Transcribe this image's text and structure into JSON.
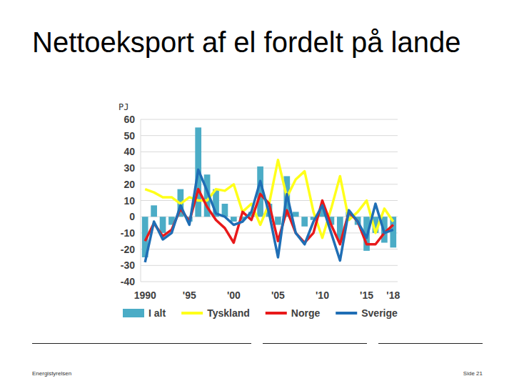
{
  "chart_data": {
    "type": "bar",
    "title": "Nettoeksport af el fordelt på lande",
    "ylabel": "PJ",
    "categories": [
      "1990",
      null,
      null,
      null,
      null,
      "'95",
      null,
      null,
      null,
      null,
      "'00",
      null,
      null,
      null,
      null,
      "'05",
      null,
      null,
      null,
      null,
      "'10",
      null,
      null,
      null,
      null,
      "'15",
      null,
      null,
      "'18"
    ],
    "series": [
      {
        "name": "I alt",
        "type": "bar",
        "color": "#4bacc6",
        "values": [
          -25,
          7,
          -10,
          -5,
          17,
          -3,
          55,
          26,
          17,
          8,
          -3,
          -2,
          3,
          31,
          8,
          -5,
          25,
          3,
          -6,
          -2,
          5,
          -5,
          -15,
          3,
          -5,
          -21,
          -10,
          -16,
          -19
        ]
      },
      {
        "name": "Tyskland",
        "type": "line",
        "color": "#ffff1a",
        "values": [
          17,
          15,
          12,
          12,
          8,
          12,
          10,
          10,
          17,
          16,
          20,
          3,
          8,
          -5,
          8,
          35,
          12,
          23,
          28,
          3,
          -13,
          5,
          25,
          -2,
          3,
          10,
          -10,
          5,
          -3
        ]
      },
      {
        "name": "Norge",
        "type": "line",
        "color": "#e8191a",
        "values": [
          -15,
          -4,
          -12,
          -8,
          5,
          -3,
          17,
          6,
          -2,
          -7,
          -16,
          3,
          -2,
          14,
          8,
          -15,
          4,
          -10,
          -16,
          -10,
          10,
          -5,
          -17,
          3,
          -3,
          -17,
          -17,
          -10,
          -5
        ]
      },
      {
        "name": "Sverige",
        "type": "line",
        "color": "#1f6eb5",
        "values": [
          -28,
          -3,
          -14,
          -10,
          7,
          -5,
          29,
          16,
          2,
          0,
          -5,
          -3,
          3,
          22,
          2,
          -25,
          14,
          -10,
          -17,
          -3,
          7,
          -10,
          -27,
          4,
          -3,
          -13,
          8,
          -10,
          -8
        ]
      }
    ],
    "ylim": [
      -40,
      60
    ],
    "yticks": [
      -40,
      -30,
      -20,
      -10,
      0,
      10,
      20,
      30,
      40,
      50,
      60
    ],
    "grid": true,
    "legend": "bottom"
  },
  "footer": {
    "source": "Energistyrelsen",
    "page": "Side 21"
  }
}
